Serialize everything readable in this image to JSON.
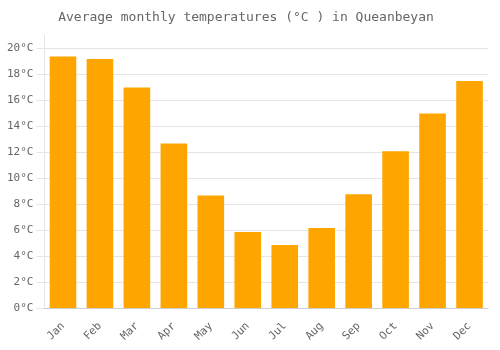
{
  "chart_data": {
    "type": "bar",
    "title": "Average monthly temperatures (°C ) in Queanbeyan",
    "categories": [
      "Jan",
      "Feb",
      "Mar",
      "Apr",
      "May",
      "Jun",
      "Jul",
      "Aug",
      "Sep",
      "Oct",
      "Nov",
      "Dec"
    ],
    "values": [
      19.4,
      19.2,
      17.0,
      12.7,
      8.7,
      5.9,
      4.9,
      6.2,
      8.8,
      12.1,
      15.0,
      17.5
    ],
    "color": "#FFA500",
    "ylim": [
      0,
      21
    ],
    "yticks": [
      {
        "value": 0,
        "label": "0°C"
      },
      {
        "value": 2,
        "label": "2°C"
      },
      {
        "value": 4,
        "label": "4°C"
      },
      {
        "value": 6,
        "label": "6°C"
      },
      {
        "value": 8,
        "label": "8°C"
      },
      {
        "value": 10,
        "label": "10°C"
      },
      {
        "value": 12,
        "label": "12°C"
      },
      {
        "value": 14,
        "label": "14°C"
      },
      {
        "value": 16,
        "label": "16°C"
      },
      {
        "value": 18,
        "label": "18°C"
      },
      {
        "value": 20,
        "label": "20°C"
      }
    ],
    "grid": true
  }
}
